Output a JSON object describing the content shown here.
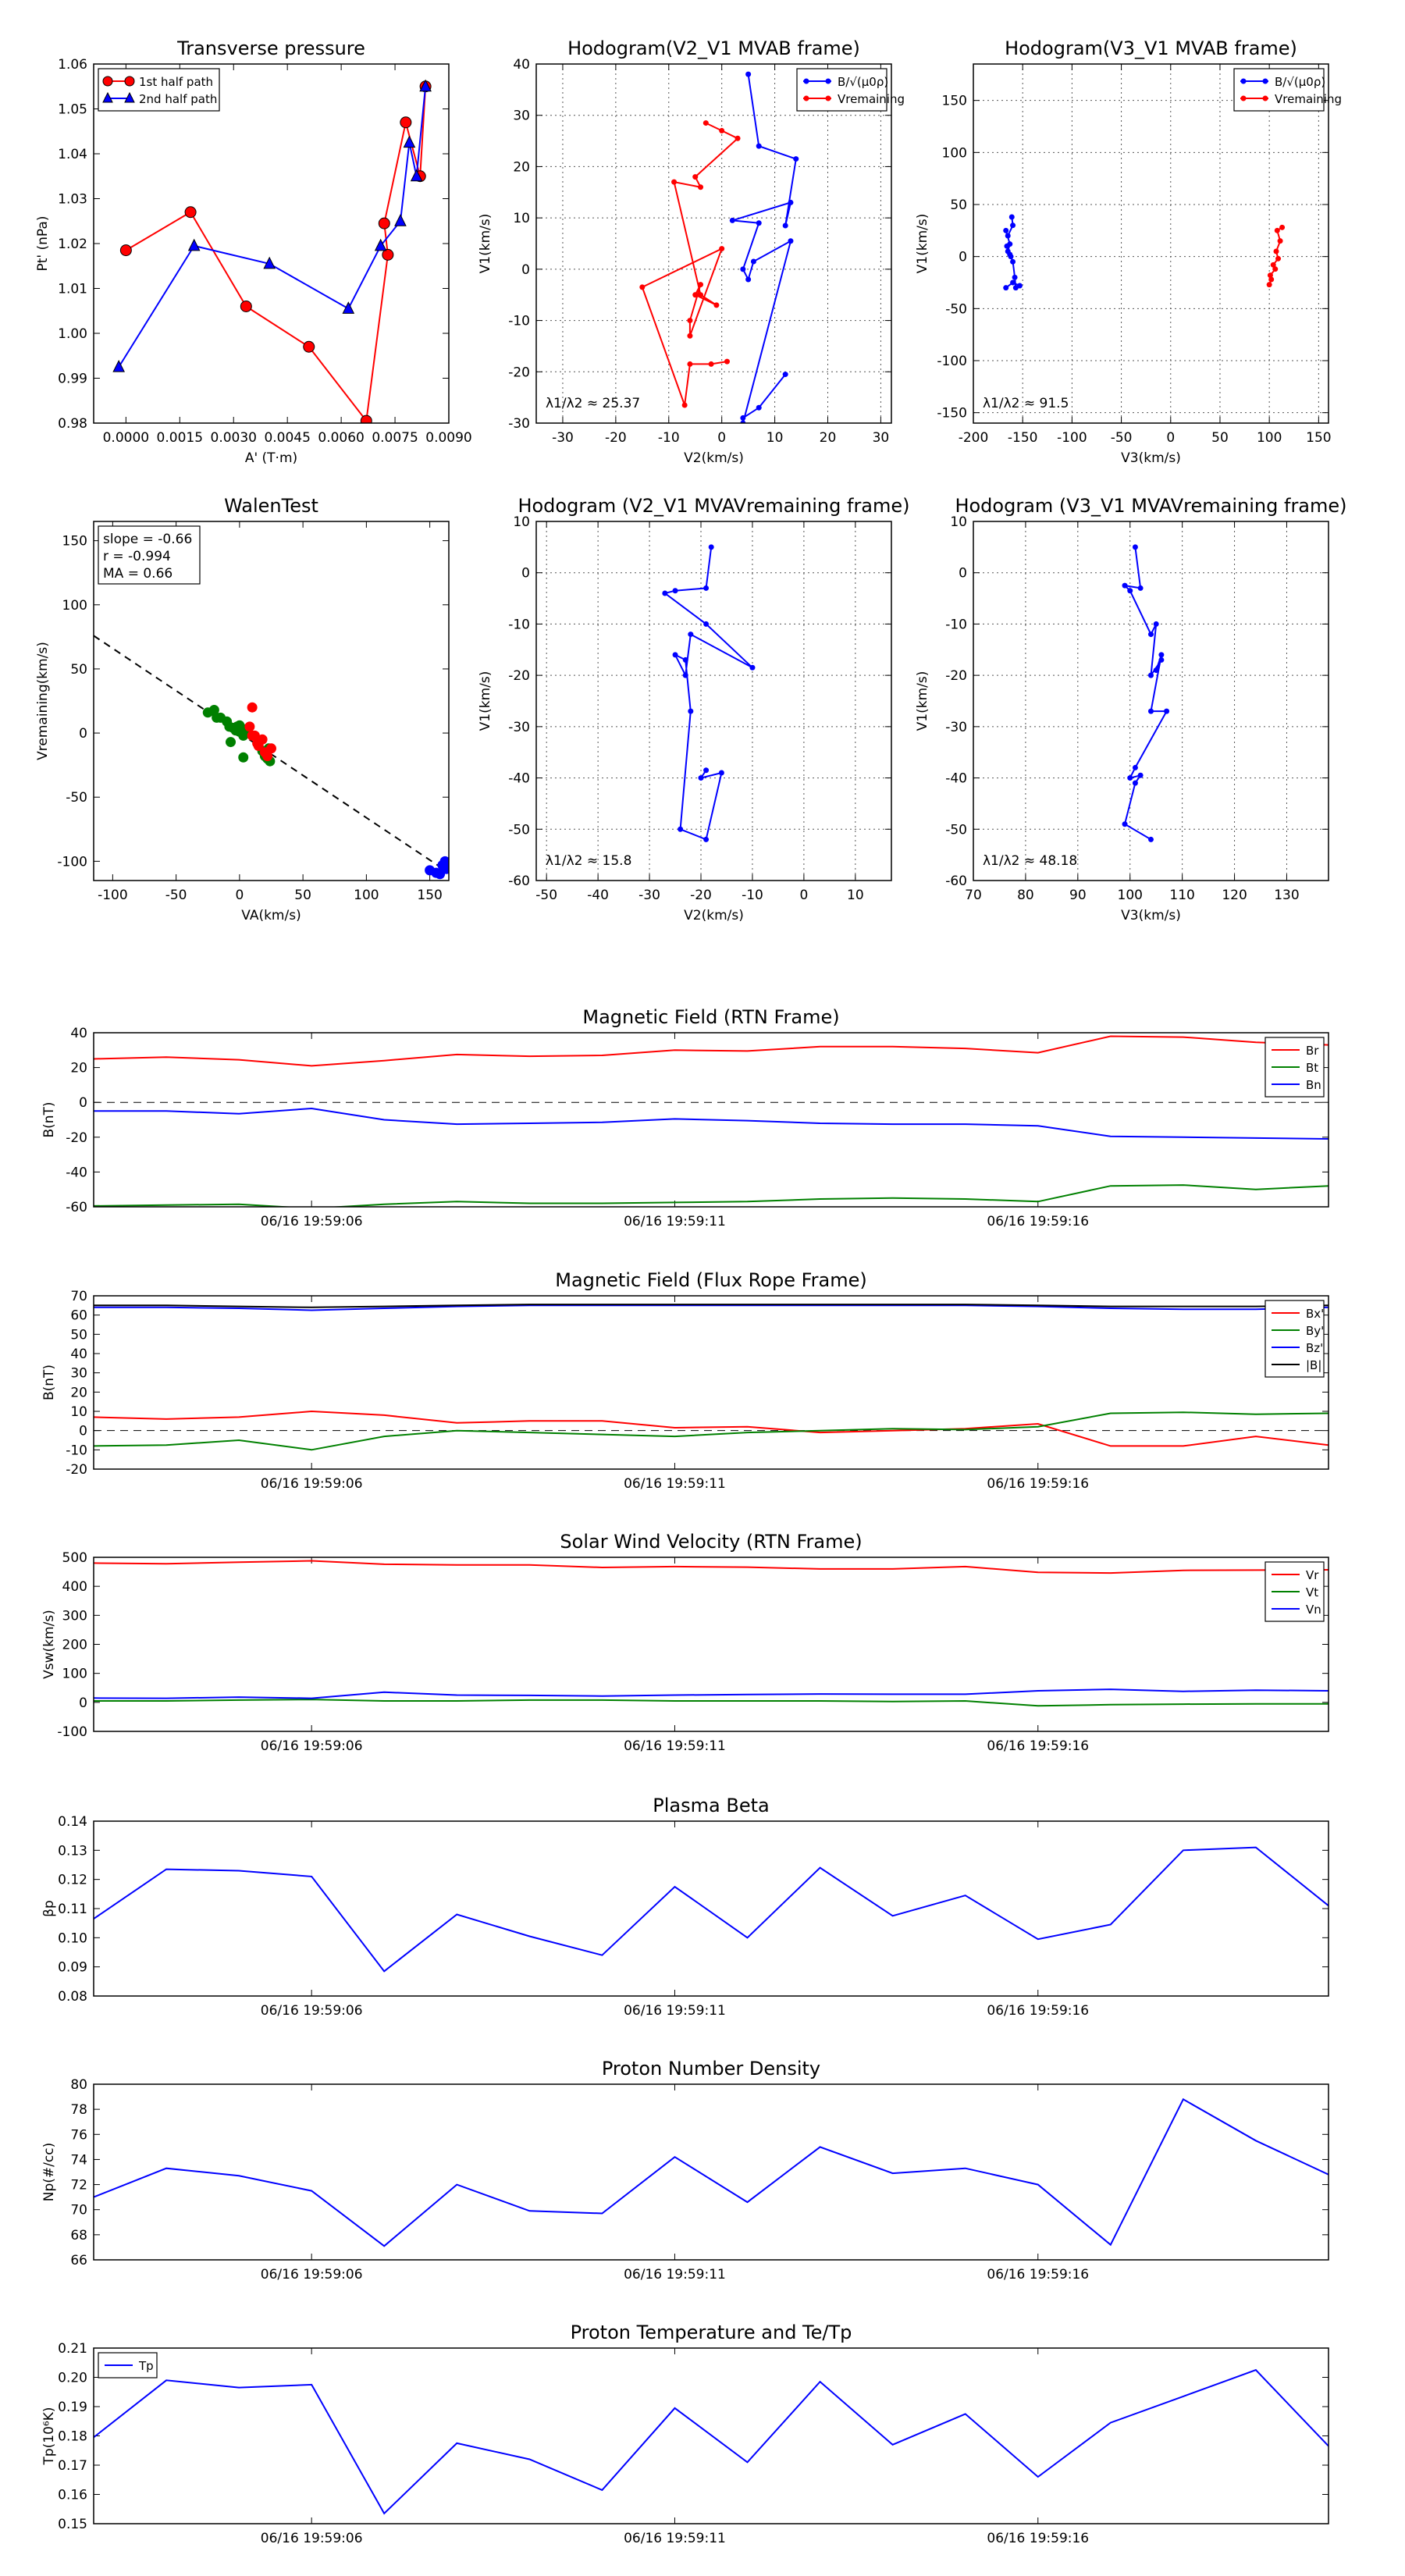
{
  "figure": {
    "time_date": "06/16"
  },
  "chart_data": [
    {
      "id": "pt",
      "type": "scatter",
      "title": "Transverse pressure",
      "xlabel": "A' (T·m)",
      "ylabel": "Pt' (nPa)",
      "xlim": [
        -0.0009,
        0.009
      ],
      "ylim": [
        0.98,
        1.06
      ],
      "xticks": [
        0,
        0.0015,
        0.003,
        0.0045,
        0.006,
        0.0075,
        0.009
      ],
      "xtick_labels": [
        "0.0000",
        "0.0015",
        "0.0030",
        "0.0045",
        "0.0060",
        "0.0075",
        "0.0090"
      ],
      "yticks": [
        0.98,
        0.99,
        1.0,
        1.01,
        1.02,
        1.03,
        1.04,
        1.05,
        1.06
      ],
      "ytick_labels": [
        "0.98",
        "0.99",
        "1.00",
        "1.01",
        "1.02",
        "1.03",
        "1.04",
        "1.05",
        "1.06"
      ],
      "legend_position": "top-left",
      "series": [
        {
          "name": "1st half path",
          "color": "#ff0000",
          "marker": "circle",
          "x": [
            0.00835,
            0.0082,
            0.0078,
            0.0072,
            0.0073,
            0.0067,
            0.0051,
            0.00335,
            0.0018,
            0
          ],
          "y": [
            1.055,
            1.035,
            1.047,
            1.0245,
            1.0175,
            0.9805,
            0.997,
            1.006,
            1.027,
            1.0185
          ]
        },
        {
          "name": "2nd half path",
          "color": "#0000ff",
          "marker": "triangle",
          "x": [
            -0.0002,
            0.0019,
            0.004,
            0.0062,
            0.0071,
            0.00765,
            0.0079,
            0.0081,
            0.00835
          ],
          "y": [
            0.9925,
            1.0195,
            1.0155,
            1.0055,
            1.0195,
            1.025,
            1.0425,
            1.035,
            1.055
          ]
        }
      ]
    },
    {
      "id": "hodo_v2v1_mvab",
      "type": "line",
      "title": "Hodogram(V2_V1 MVAB frame)",
      "xlabel": "V2(km/s)",
      "ylabel": "V1(km/s)",
      "xlim": [
        -35,
        32
      ],
      "ylim": [
        -30,
        40
      ],
      "xticks": [
        -30,
        -20,
        -10,
        0,
        10,
        20,
        30
      ],
      "yticks": [
        -30,
        -20,
        -10,
        0,
        10,
        20,
        30,
        40
      ],
      "grid": true,
      "legend_position": "top-right",
      "annotation": "λ1/λ2 ≈ 25.37",
      "series": [
        {
          "name": "B/√(μ0ρ)",
          "color": "#0000ff",
          "x": [
            5,
            7,
            14,
            12,
            13,
            2,
            7,
            4,
            5,
            6,
            13,
            4,
            4,
            7,
            12
          ],
          "y": [
            38,
            24,
            21.5,
            8.5,
            13,
            9.5,
            9,
            0,
            -2,
            1.5,
            5.5,
            -30,
            -29,
            -27,
            -20.5
          ]
        },
        {
          "name": "Vremaining",
          "color": "#ff0000",
          "x": [
            -3,
            0,
            3,
            -5,
            -4,
            -9,
            -4,
            -1,
            -5,
            -4,
            -6,
            -6,
            0,
            -15,
            -7,
            -6,
            -2,
            1
          ],
          "y": [
            28.5,
            27,
            25.5,
            18,
            16,
            17,
            -5,
            -7,
            -5,
            -3,
            -10,
            -13,
            4,
            -3.5,
            -26.5,
            -18.5,
            -18.5,
            -18
          ]
        }
      ]
    },
    {
      "id": "hodo_v3v1_mvab",
      "type": "line",
      "title": "Hodogram(V3_V1 MVAB frame)",
      "xlabel": "V3(km/s)",
      "ylabel": "V1(km/s)",
      "xlim": [
        -200,
        160
      ],
      "ylim": [
        -160,
        185
      ],
      "xticks": [
        -200,
        -150,
        -100,
        -50,
        0,
        50,
        100,
        150
      ],
      "yticks": [
        -150,
        -100,
        -50,
        0,
        50,
        100,
        150
      ],
      "grid": true,
      "legend_position": "top-right",
      "annotation": "λ1/λ2 ≈ 91.5",
      "series": [
        {
          "name": "B/√(μ0ρ)",
          "color": "#0000ff",
          "x": [
            -161,
            -160,
            -165,
            -167,
            -163,
            -165,
            -162,
            -166,
            -163,
            -160,
            -158,
            -157,
            -153,
            -160,
            -167
          ],
          "y": [
            38,
            30,
            20,
            25,
            12,
            5,
            0,
            10,
            2,
            -5,
            -20,
            -30,
            -28,
            -25,
            -30
          ]
        },
        {
          "name": "Vremaining",
          "color": "#ff0000",
          "x": [
            113,
            108,
            111,
            107,
            109,
            104,
            106,
            101,
            102,
            100
          ],
          "y": [
            28,
            25,
            15,
            5,
            -2,
            -8,
            -12,
            -18,
            -22,
            -27
          ]
        }
      ]
    },
    {
      "id": "walen",
      "type": "scatter",
      "title": "WalenTest",
      "xlabel": "VA(km/s)",
      "ylabel": "Vremaining(km/s)",
      "xlim": [
        -115,
        165
      ],
      "ylim": [
        -115,
        165
      ],
      "xticks": [
        -100,
        -50,
        0,
        50,
        100,
        150
      ],
      "yticks": [
        -100,
        -50,
        0,
        50,
        100,
        150
      ],
      "annotation_lines": [
        "slope = -0.66",
        "r = -0.994",
        "MA = 0.66"
      ],
      "fit": {
        "slope": -0.66
      },
      "series": [
        {
          "name": "green",
          "color": "#008000",
          "x": [
            -25,
            -20,
            -18,
            -15,
            -10,
            -8,
            -5,
            -3,
            0,
            2,
            5,
            -2,
            0,
            3,
            6,
            20,
            22,
            24,
            -7,
            3,
            18,
            23
          ],
          "y": [
            16,
            18,
            12,
            12,
            9,
            5,
            4,
            2,
            1,
            0,
            3,
            5,
            6,
            -2,
            0,
            -18,
            -20,
            -22,
            -7,
            -19,
            -14,
            -12
          ]
        },
        {
          "name": "red",
          "color": "#ff0000",
          "x": [
            10,
            15,
            20,
            18,
            12,
            8,
            25,
            22,
            14,
            10
          ],
          "y": [
            20,
            -10,
            -15,
            -5,
            -2,
            5,
            -12,
            -18,
            -8,
            -2
          ]
        },
        {
          "name": "blue",
          "color": "#0000ff",
          "x": [
            150,
            155,
            158,
            162,
            160,
            163
          ],
          "y": [
            -107,
            -109,
            -110,
            -100,
            -103,
            -106
          ]
        }
      ]
    },
    {
      "id": "hodo_v2v1_mvav",
      "type": "line",
      "title": "Hodogram (V2_V1 MVAVremaining frame)",
      "xlabel": "V2(km/s)",
      "ylabel": "V1(km/s)",
      "xlim": [
        -52,
        17
      ],
      "ylim": [
        -60,
        10
      ],
      "xticks": [
        -50,
        -40,
        -30,
        -20,
        -10,
        0,
        10
      ],
      "yticks": [
        -60,
        -50,
        -40,
        -30,
        -20,
        -10,
        0,
        10
      ],
      "grid": true,
      "annotation": "λ1/λ2 ≈ 15.8",
      "series": [
        {
          "name": "B",
          "color": "#0000ff",
          "x": [
            -18,
            -19,
            -25,
            -27,
            -19,
            -10,
            -22,
            -23,
            -25,
            -23,
            -22,
            -24,
            -19,
            -16,
            -20,
            -19
          ],
          "y": [
            5,
            -3,
            -3.5,
            -4,
            -10,
            -18.5,
            -12,
            -20,
            -16,
            -17,
            -27,
            -50,
            -52,
            -39,
            -40,
            -38.5
          ]
        }
      ]
    },
    {
      "id": "hodo_v3v1_mvav",
      "type": "line",
      "title": "Hodogram (V3_V1 MVAVremaining frame)",
      "xlabel": "V3(km/s)",
      "ylabel": "V1(km/s)",
      "xlim": [
        70,
        138
      ],
      "ylim": [
        -60,
        10
      ],
      "xticks": [
        70,
        80,
        90,
        100,
        110,
        120,
        130
      ],
      "yticks": [
        -60,
        -50,
        -40,
        -30,
        -20,
        -10,
        0,
        10
      ],
      "grid": true,
      "annotation": "λ1/λ2 ≈ 48.18",
      "series": [
        {
          "name": "B",
          "color": "#0000ff",
          "x": [
            101,
            102,
            99,
            100,
            104,
            105,
            104,
            106,
            105,
            106,
            104,
            107,
            101,
            100,
            102,
            101,
            99,
            104
          ],
          "y": [
            5,
            -3,
            -2.5,
            -3.5,
            -12,
            -10,
            -20,
            -17,
            -19,
            -16,
            -27,
            -27,
            -38,
            -40,
            -39.5,
            -41,
            -49,
            -52
          ]
        }
      ]
    },
    {
      "id": "b_rtn",
      "type": "line",
      "title": "Magnetic Field (RTN Frame)",
      "xlabel": "",
      "ylabel": "B(nT)",
      "xlim": [
        0,
        17
      ],
      "ylim": [
        -60,
        40
      ],
      "yticks": [
        -60,
        -40,
        -20,
        0,
        20,
        40
      ],
      "time_ticks": [
        3,
        8,
        13
      ],
      "time_labels": [
        "19:59:06",
        "19:59:11",
        "19:59:16"
      ],
      "zero_line": true,
      "legend_position": "top-right",
      "series": [
        {
          "name": "Br",
          "color": "#ff0000",
          "values": [
            25,
            26,
            24.5,
            21,
            24,
            27.5,
            26.5,
            27,
            30,
            29.5,
            32,
            32,
            31,
            28.5,
            38,
            37.5,
            34.5,
            33
          ]
        },
        {
          "name": "Bt",
          "color": "#008000",
          "values": [
            -59.5,
            -59,
            -58.5,
            -61,
            -58.5,
            -57,
            -58,
            -58,
            -57.5,
            -57,
            -55.5,
            -55,
            -55.5,
            -57,
            -48,
            -47.5,
            -50,
            -48
          ]
        },
        {
          "name": "Bn",
          "color": "#0000ff",
          "values": [
            -5,
            -5,
            -6.5,
            -3.5,
            -10,
            -12.5,
            -12,
            -11.5,
            -9.5,
            -10.5,
            -12,
            -12.5,
            -12.5,
            -13.5,
            -19.5,
            -20,
            -20.5,
            -21
          ]
        }
      ]
    },
    {
      "id": "b_flux",
      "type": "line",
      "title": "Magnetic Field (Flux Rope Frame)",
      "xlabel": "",
      "ylabel": "B(nT)",
      "xlim": [
        0,
        17
      ],
      "ylim": [
        -20,
        70
      ],
      "yticks": [
        -20,
        -10,
        0,
        10,
        20,
        30,
        40,
        50,
        60,
        70
      ],
      "time_ticks": [
        3,
        8,
        13
      ],
      "time_labels": [
        "19:59:06",
        "19:59:11",
        "19:59:16"
      ],
      "zero_line": true,
      "legend_position": "top-right",
      "series": [
        {
          "name": "Bx'",
          "color": "#ff0000",
          "values": [
            7,
            6,
            7,
            10,
            8,
            4,
            5,
            5,
            1.5,
            2,
            -1,
            0,
            1,
            3.5,
            -8,
            -8,
            -3,
            -7.5
          ]
        },
        {
          "name": "By'",
          "color": "#008000",
          "values": [
            -8,
            -7.5,
            -5,
            -10,
            -3,
            0,
            -1,
            -2,
            -3,
            -1,
            0,
            1,
            0.5,
            2,
            9,
            9.5,
            8.5,
            9
          ]
        },
        {
          "name": "Bz'",
          "color": "#0000ff",
          "values": [
            64,
            64,
            63.5,
            62.5,
            63.5,
            64.5,
            65,
            65,
            65,
            65,
            65,
            65,
            65,
            64.5,
            63.5,
            63,
            63,
            64
          ]
        },
        {
          "name": "|B|",
          "color": "#000000",
          "values": [
            65,
            65,
            64.5,
            64,
            64.5,
            65,
            65.5,
            65.5,
            65.5,
            65.5,
            65.5,
            65.5,
            65.5,
            65,
            64.5,
            64.5,
            64.5,
            65
          ]
        }
      ]
    },
    {
      "id": "vsw",
      "type": "line",
      "title": "Solar Wind Velocity (RTN Frame)",
      "xlabel": "",
      "ylabel": "Vsw(km/s)",
      "xlim": [
        0,
        17
      ],
      "ylim": [
        -100,
        500
      ],
      "yticks": [
        -100,
        0,
        100,
        200,
        300,
        400,
        500
      ],
      "time_ticks": [
        3,
        8,
        13
      ],
      "time_labels": [
        "19:59:06",
        "19:59:11",
        "19:59:16"
      ],
      "legend_position": "top-right",
      "series": [
        {
          "name": "Vr",
          "color": "#ff0000",
          "values": [
            480,
            478,
            483,
            488,
            476,
            474,
            474,
            465,
            468,
            466,
            460,
            460,
            468,
            448,
            446,
            455,
            456,
            457
          ]
        },
        {
          "name": "Vt",
          "color": "#008000",
          "values": [
            5,
            5,
            8,
            10,
            5,
            5,
            8,
            8,
            5,
            5,
            5,
            3,
            5,
            -12,
            -8,
            -6,
            -5,
            -5
          ]
        },
        {
          "name": "Vn",
          "color": "#0000ff",
          "values": [
            15,
            14,
            18,
            14,
            35,
            25,
            24,
            22,
            25,
            27,
            29,
            28,
            28,
            40,
            45,
            38,
            42,
            40
          ]
        }
      ]
    },
    {
      "id": "beta",
      "type": "line",
      "title": "Plasma Beta",
      "xlabel": "",
      "ylabel": "βp",
      "xlim": [
        0,
        17
      ],
      "ylim": [
        0.08,
        0.14
      ],
      "yticks": [
        0.08,
        0.09,
        0.1,
        0.11,
        0.12,
        0.13,
        0.14
      ],
      "ytick_labels": [
        "0.08",
        "0.09",
        "0.10",
        "0.11",
        "0.12",
        "0.13",
        "0.14"
      ],
      "time_ticks": [
        3,
        8,
        13
      ],
      "time_labels": [
        "19:59:06",
        "19:59:11",
        "19:59:16"
      ],
      "series": [
        {
          "name": "βp",
          "color": "#0000ff",
          "values": [
            0.1065,
            0.1235,
            0.123,
            0.121,
            0.0885,
            0.108,
            0.1005,
            0.094,
            0.1175,
            0.1,
            0.124,
            0.1075,
            0.1145,
            0.0995,
            0.1045,
            0.13,
            0.131,
            0.111
          ]
        }
      ]
    },
    {
      "id": "np",
      "type": "line",
      "title": "Proton Number Density",
      "xlabel": "",
      "ylabel": "Np(#/cc)",
      "xlim": [
        0,
        17
      ],
      "ylim": [
        66,
        80
      ],
      "yticks": [
        66,
        68,
        70,
        72,
        74,
        76,
        78,
        80
      ],
      "time_ticks": [
        3,
        8,
        13
      ],
      "time_labels": [
        "19:59:06",
        "19:59:11",
        "19:59:16"
      ],
      "series": [
        {
          "name": "Np",
          "color": "#0000ff",
          "values": [
            71.0,
            73.3,
            72.7,
            71.5,
            67.1,
            72.0,
            69.9,
            69.7,
            74.2,
            70.6,
            75.0,
            72.9,
            73.3,
            72.0,
            67.2,
            78.8,
            75.5,
            72.8
          ]
        }
      ]
    },
    {
      "id": "tp",
      "type": "line",
      "title": "Proton Temperature and Te/Tp",
      "xlabel": "",
      "ylabel": "Tp(10⁶K)",
      "xlim": [
        0,
        17
      ],
      "ylim": [
        0.15,
        0.21
      ],
      "yticks": [
        0.15,
        0.16,
        0.17,
        0.18,
        0.19,
        0.2,
        0.21
      ],
      "ytick_labels": [
        "0.15",
        "0.16",
        "0.17",
        "0.18",
        "0.19",
        "0.20",
        "0.21"
      ],
      "time_ticks": [
        3,
        8,
        13
      ],
      "time_labels": [
        "19:59:06",
        "19:59:11",
        "19:59:16"
      ],
      "legend_position": "top-left",
      "series": [
        {
          "name": "Tp",
          "color": "#0000ff",
          "values": [
            0.1795,
            0.199,
            0.1965,
            0.1975,
            0.1535,
            0.1775,
            0.172,
            0.1615,
            0.1895,
            0.171,
            0.1985,
            0.177,
            0.1875,
            0.166,
            0.1845,
            0.1935,
            0.2025,
            0.1765
          ]
        }
      ]
    }
  ]
}
